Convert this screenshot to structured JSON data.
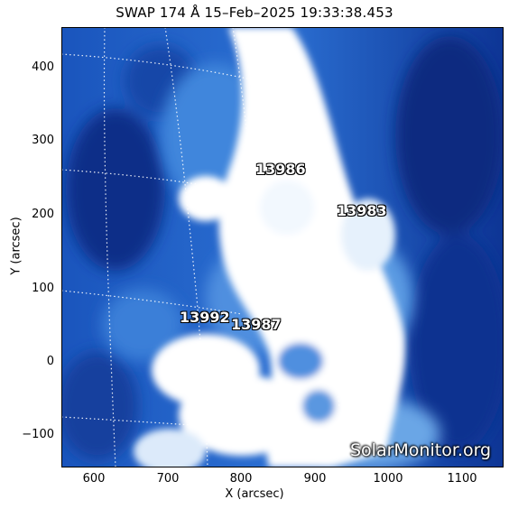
{
  "title": "SWAP 174 Å 15–Feb–2025 19:33:38.453",
  "xlabel": "X (arcsec)",
  "ylabel": "Y (arcsec)",
  "x_ticks": [
    "600",
    "700",
    "800",
    "900",
    "1000",
    "1100"
  ],
  "y_ticks": [
    "400",
    "300",
    "200",
    "100",
    "0",
    "−100"
  ],
  "regions": [
    {
      "id": "13986",
      "label": "13986"
    },
    {
      "id": "13983",
      "label": "13983"
    },
    {
      "id": "13992",
      "label": "13992"
    },
    {
      "id": "13987",
      "label": "13987"
    }
  ],
  "watermark": "SolarMonitor.org",
  "colors": {
    "deep": "#0a2f8f",
    "mid": "#2a6fd0",
    "light": "#7fb3ea",
    "bright": "#ffffff"
  }
}
